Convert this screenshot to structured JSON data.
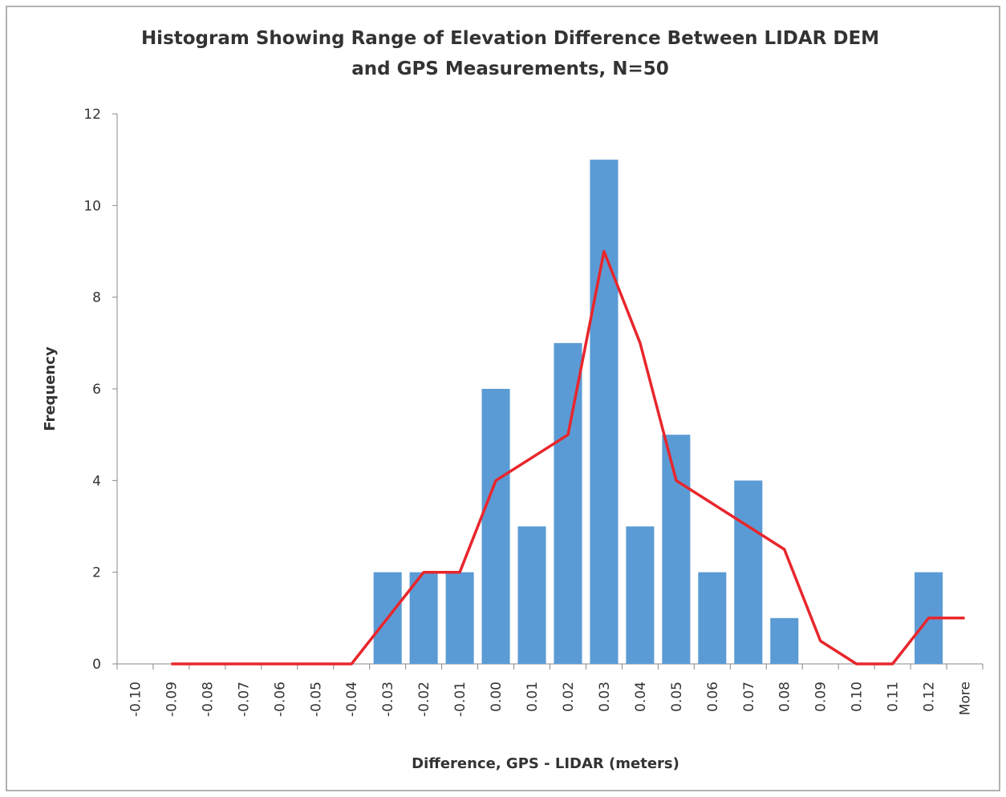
{
  "chart_data": {
    "type": "bar",
    "title": [
      "Histogram Showing Range of Elevation Difference Between LIDAR DEM",
      "and GPS Measurements, N=50"
    ],
    "x_label": "Difference, GPS - LIDAR (meters)",
    "y_label": "Frequency",
    "categories": [
      "-0.10",
      "-0.09",
      "-0.08",
      "-0.07",
      "-0.06",
      "-0.05",
      "-0.04",
      "-0.03",
      "-0.02",
      "-0.01",
      "0.00",
      "0.01",
      "0.02",
      "0.03",
      "0.04",
      "0.05",
      "0.06",
      "0.07",
      "0.08",
      "0.09",
      "0.10",
      "0.11",
      "0.12",
      "More"
    ],
    "series": [
      {
        "type": "bar",
        "color": "#5b9bd5",
        "values": [
          0,
          0,
          0,
          0,
          0,
          0,
          0,
          2,
          2,
          2,
          6,
          3,
          7,
          11,
          3,
          5,
          2,
          4,
          1,
          0,
          0,
          0,
          2,
          0
        ]
      },
      {
        "type": "line",
        "color": "#e8262c",
        "values": [
          null,
          0,
          0,
          0,
          0,
          0,
          0,
          1,
          2,
          2,
          4,
          4.5,
          5,
          9,
          7,
          4,
          3.5,
          3,
          2.5,
          0.5,
          0,
          0,
          1,
          1
        ]
      }
    ],
    "ylim": [
      0,
      12
    ],
    "yticks": [
      0,
      2,
      4,
      6,
      8,
      10,
      12
    ],
    "grid": false
  }
}
